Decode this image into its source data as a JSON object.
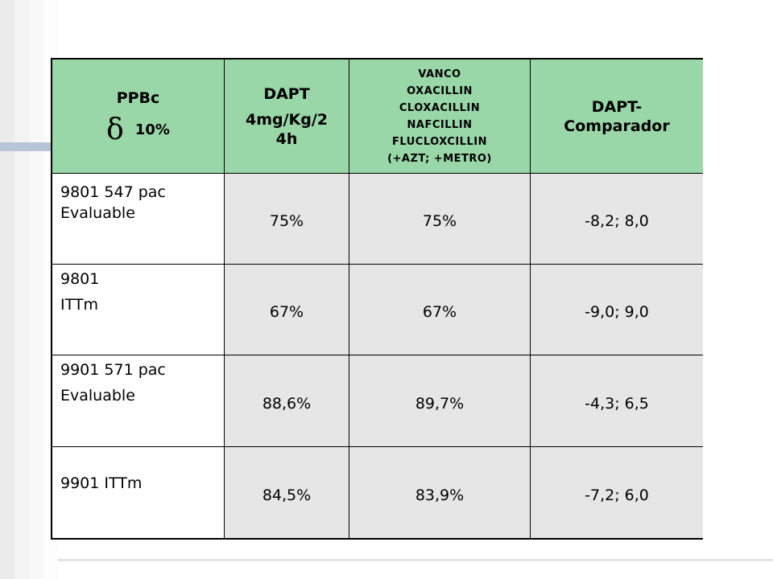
{
  "table": {
    "headers": {
      "col1": {
        "line1": "PPBc",
        "delta_symbol": "δ",
        "delta_value": "10%"
      },
      "col2": {
        "line1": "DAPT",
        "line2": "4mg/Kg/2",
        "line3": "4h"
      },
      "col3": {
        "lines": [
          "VANCO",
          "OXACILLIN",
          "CLOXACILLIN",
          "NAFCILLIN",
          "FLUCLOXCILLIN",
          "(+AZT; +METRO)"
        ]
      },
      "col4": {
        "line1": "DAPT-",
        "line2": "Comparador"
      }
    },
    "rows": [
      {
        "label_line1": "9801 547 pac",
        "label_line2": "Evaluable",
        "dapt": "75%",
        "comparator": "75%",
        "interval": "-8,2; 8,0"
      },
      {
        "label_line1": "9801",
        "label_line2": "ITTm",
        "dapt": "67%",
        "comparator": "67%",
        "interval": "-9,0; 9,0"
      },
      {
        "label_line1": "9901 571 pac",
        "label_line2": "Evaluable",
        "dapt": "88,6%",
        "comparator": "89,7%",
        "interval": "-4,3;  6,5"
      },
      {
        "label_line1": "9901 ITTm",
        "label_line2": "",
        "dapt": "84,5%",
        "comparator": "83,9%",
        "interval": "-7,2; 6,0"
      }
    ]
  },
  "colors": {
    "header_bg": "#99d6a8",
    "value_cell_bg": "#e6e6e6",
    "label_cell_bg": "#ffffff",
    "border": "#000000"
  }
}
